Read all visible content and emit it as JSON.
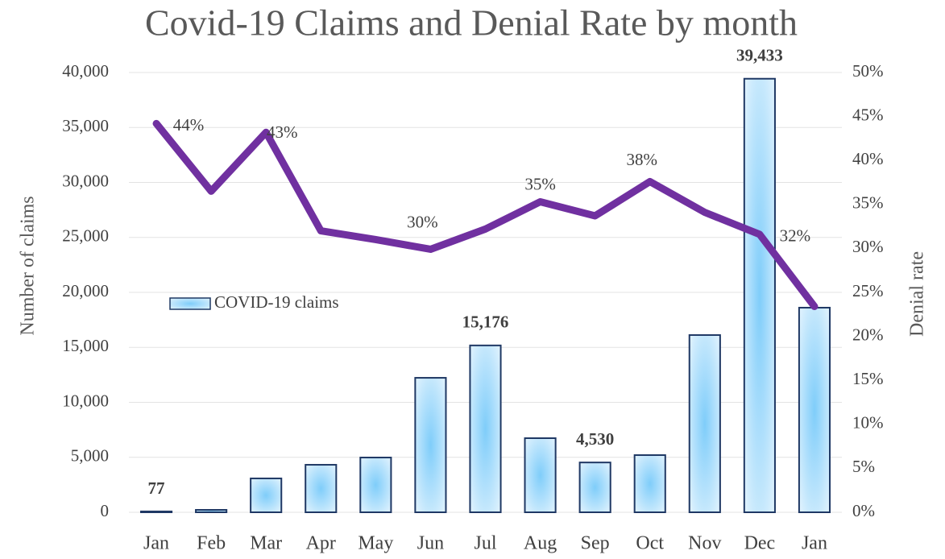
{
  "chart_data": {
    "type": "bar+line",
    "title": "Covid-19 Claims and Denial Rate by month",
    "y_label": "Number of claims",
    "y2_label": "Denial rate",
    "categories": [
      "Jan",
      "Feb",
      "Mar",
      "Apr",
      "May",
      "Jun",
      "Jul",
      "Aug",
      "Sep",
      "Oct",
      "Nov",
      "Dec",
      "Jan"
    ],
    "series": [
      {
        "name": "COVID-19 claims",
        "type": "bar",
        "color": "#8fd3fb",
        "edge_color": "#1f3864",
        "values": [
          77,
          220,
          3080,
          4320,
          4980,
          12230,
          15176,
          6740,
          4530,
          5200,
          16120,
          39433,
          18610
        ],
        "value_labels": [
          "77",
          null,
          null,
          null,
          null,
          null,
          "15,176",
          null,
          "4,530",
          null,
          null,
          "39,433",
          null
        ]
      },
      {
        "type": "line",
        "axis": "y2",
        "color": "#7030a0",
        "values": [
          44.2,
          36.5,
          43.2,
          32.0,
          31.0,
          29.9,
          32.2,
          35.3,
          33.7,
          37.6,
          34.1,
          31.6,
          23.4
        ],
        "value_labels": [
          "44%",
          null,
          "43%",
          null,
          null,
          "30%",
          null,
          "35%",
          null,
          "38%",
          null,
          "32%",
          null
        ]
      }
    ],
    "ylim": [
      0,
      40000
    ],
    "yticks": [
      0,
      {
        "value": 5000,
        "label": "5,000"
      },
      {
        "value": 10000,
        "label": "10,000"
      },
      {
        "value": 15000,
        "label": "15,000"
      },
      {
        "value": 20000,
        "label": "20,000"
      },
      {
        "value": 25000,
        "label": "25,000"
      },
      {
        "value": 30000,
        "label": "30,000"
      },
      {
        "value": 35000,
        "label": "35,000"
      },
      {
        "value": 40000,
        "label": "40,000"
      }
    ],
    "y2lim": [
      0,
      50
    ],
    "y2ticks": [
      {
        "value": 0,
        "label": "0%"
      },
      {
        "value": 5,
        "label": "5%"
      },
      {
        "value": 10,
        "label": "10%"
      },
      {
        "value": 15,
        "label": "15%"
      },
      {
        "value": 20,
        "label": "20%"
      },
      {
        "value": 25,
        "label": "25%"
      },
      {
        "value": 30,
        "label": "30%"
      },
      {
        "value": 35,
        "label": "35%"
      },
      {
        "value": 40,
        "label": "40%"
      },
      {
        "value": 45,
        "label": "45%"
      },
      {
        "value": 50,
        "label": "50%"
      }
    ],
    "grid": true
  }
}
